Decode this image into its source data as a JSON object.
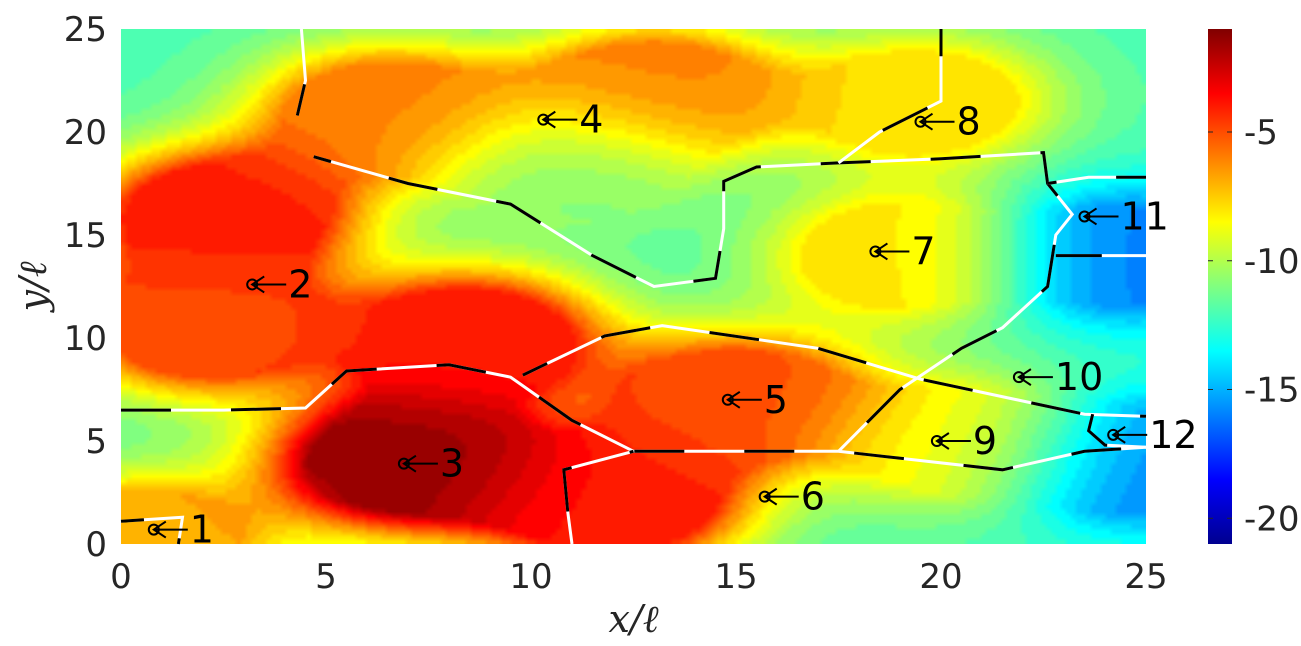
{
  "chart_data": {
    "type": "heatmap",
    "title": "",
    "xlabel": "x/ℓ",
    "ylabel": "y/ℓ",
    "xlim": [
      0,
      25
    ],
    "ylim": [
      0,
      25
    ],
    "x_ticks": [
      0,
      5,
      10,
      15,
      20,
      25
    ],
    "y_ticks": [
      0,
      5,
      10,
      15,
      20,
      25
    ],
    "colorbar": {
      "range": [
        -21,
        -1
      ],
      "ticks": [
        -5,
        -10,
        -15,
        -20
      ],
      "tick_labels": [
        "-5",
        "-10",
        "-15",
        "-20"
      ],
      "colormap": "jet"
    },
    "peaks": [
      {
        "x": 0.5,
        "y": 0.2,
        "value": -7
      },
      {
        "x": 2.5,
        "y": 16.0,
        "value": -4
      },
      {
        "x": 2.0,
        "y": 10.5,
        "value": -5
      },
      {
        "x": 7.0,
        "y": 4.0,
        "value": -1.3
      },
      {
        "x": 12.0,
        "y": 2.0,
        "value": -4
      },
      {
        "x": 8.5,
        "y": 10.0,
        "value": -4
      },
      {
        "x": 13.0,
        "y": 22.0,
        "value": -6
      },
      {
        "x": 6.5,
        "y": 21.0,
        "value": -6
      },
      {
        "x": 15.0,
        "y": 7.0,
        "value": -5
      },
      {
        "x": 19.0,
        "y": 14.0,
        "value": -8
      },
      {
        "x": 19.5,
        "y": 21.5,
        "value": -8
      },
      {
        "x": 20.5,
        "y": 5.0,
        "value": -8.5
      },
      {
        "x": 24.5,
        "y": 14.0,
        "value": -16
      },
      {
        "x": 24.8,
        "y": 4.0,
        "value": -16
      },
      {
        "x": 11.0,
        "y": 18.0,
        "value": -11
      }
    ],
    "regions": [
      {
        "label": "1",
        "x": 0.8,
        "y": 0.7
      },
      {
        "label": "2",
        "x": 3.2,
        "y": 12.6
      },
      {
        "label": "3",
        "x": 6.9,
        "y": 3.9
      },
      {
        "label": "4",
        "x": 10.3,
        "y": 20.6
      },
      {
        "label": "5",
        "x": 14.8,
        "y": 7.0
      },
      {
        "label": "6",
        "x": 15.7,
        "y": 2.3
      },
      {
        "label": "7",
        "x": 18.4,
        "y": 14.2
      },
      {
        "label": "8",
        "x": 19.5,
        "y": 20.5
      },
      {
        "label": "9",
        "x": 19.9,
        "y": 5.0
      },
      {
        "label": "10",
        "x": 21.9,
        "y": 8.1
      },
      {
        "label": "11",
        "x": 23.5,
        "y": 15.9
      },
      {
        "label": "12",
        "x": 24.2,
        "y": 5.3
      }
    ],
    "boundaries": [
      [
        [
          0,
          6.5
        ],
        [
          2.5,
          6.5
        ],
        [
          4.5,
          6.6
        ],
        [
          5.5,
          8.4
        ],
        [
          8,
          8.7
        ],
        [
          9.5,
          8.1
        ],
        [
          11,
          6
        ],
        [
          12.5,
          4.5
        ],
        [
          17.5,
          4.5
        ],
        [
          21.5,
          3.6
        ],
        [
          23.5,
          4.5
        ],
        [
          25,
          4.7
        ]
      ],
      [
        [
          9.8,
          8.2
        ],
        [
          11.8,
          10.1
        ],
        [
          13.2,
          10.6
        ],
        [
          17,
          9.5
        ],
        [
          19.5,
          8
        ],
        [
          23.5,
          6.3
        ],
        [
          25,
          6.2
        ]
      ],
      [
        [
          12.5,
          4.5
        ],
        [
          10.8,
          3.6
        ],
        [
          10.9,
          1.5
        ],
        [
          11.0,
          0
        ]
      ],
      [
        [
          23.7,
          6.3
        ],
        [
          23.6,
          5.5
        ],
        [
          24.0,
          4.8
        ],
        [
          25,
          4.7
        ]
      ],
      [
        [
          4.7,
          18.8
        ],
        [
          7,
          17.5
        ],
        [
          9.5,
          16.5
        ],
        [
          11.5,
          14
        ],
        [
          13,
          12.5
        ],
        [
          14.5,
          12.9
        ],
        [
          14.7,
          15.3
        ],
        [
          14.7,
          17.6
        ],
        [
          15.5,
          18.3
        ],
        [
          17.5,
          18.5
        ],
        [
          20,
          18.7
        ],
        [
          22.5,
          19
        ],
        [
          22.6,
          17.5
        ],
        [
          23.2,
          16
        ],
        [
          22.8,
          15
        ],
        [
          22.6,
          12.5
        ],
        [
          21.5,
          10.5
        ],
        [
          20.5,
          9.5
        ],
        [
          19.0,
          7.5
        ],
        [
          17.5,
          4.5
        ]
      ],
      [
        [
          17.5,
          18.5
        ],
        [
          18.5,
          20.0
        ],
        [
          20,
          21.5
        ],
        [
          20.0,
          25
        ]
      ],
      [
        [
          4.3,
          20.8
        ],
        [
          4.5,
          22.5
        ],
        [
          4.4,
          25
        ]
      ],
      [
        [
          22.6,
          17.5
        ],
        [
          23.6,
          17.8
        ],
        [
          25,
          17.8
        ]
      ],
      [
        [
          22.8,
          14
        ],
        [
          25,
          14
        ]
      ],
      [
        [
          0,
          1.1
        ],
        [
          1.5,
          1.3
        ],
        [
          1.4,
          0
        ]
      ]
    ]
  }
}
